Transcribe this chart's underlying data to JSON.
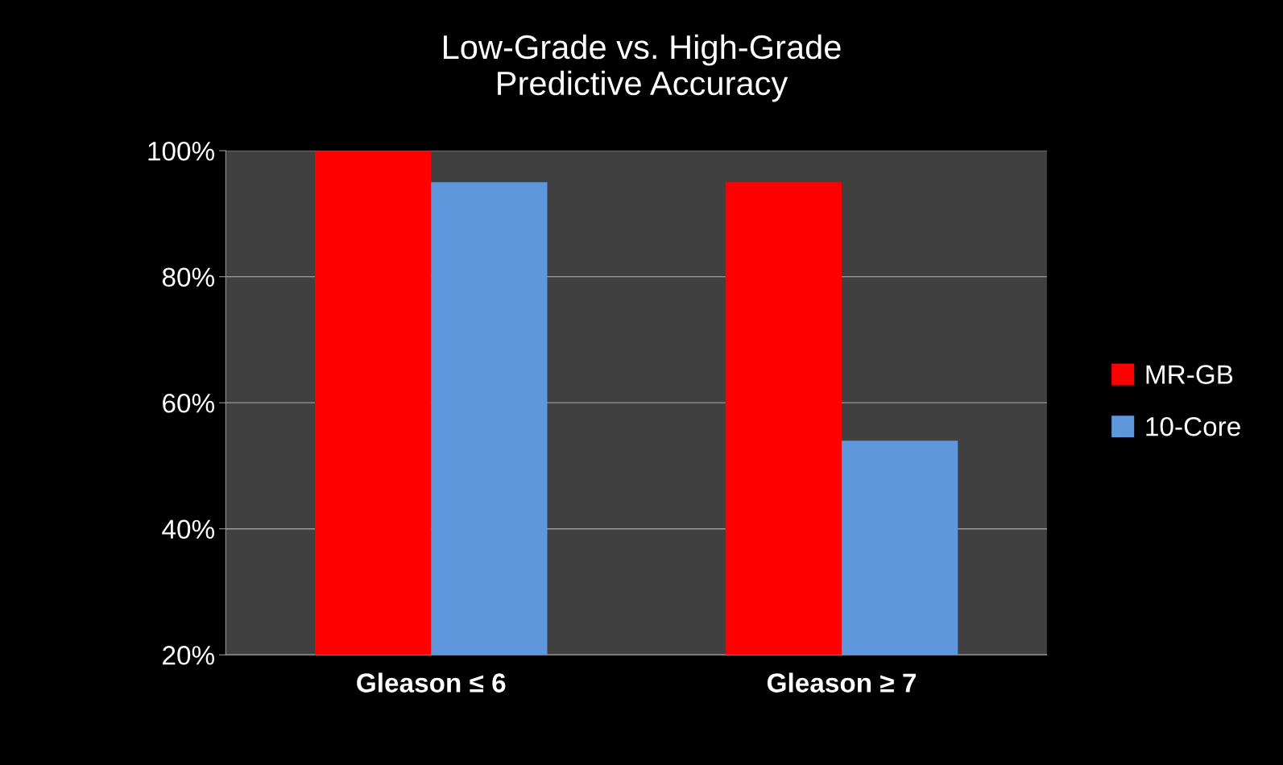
{
  "chart_data": {
    "type": "bar",
    "title": "Low-Grade vs. High-Grade\nPredictive Accuracy",
    "categories": [
      "Gleason ≤ 6",
      "Gleason ≥ 7"
    ],
    "series": [
      {
        "name": "MR-GB",
        "color": "#ff0000",
        "values": [
          100,
          95
        ]
      },
      {
        "name": "10-Core",
        "color": "#5f97dd",
        "values": [
          95,
          54
        ]
      }
    ],
    "ylim": [
      20,
      100
    ],
    "yticks": [
      {
        "value": 20,
        "label": "20%"
      },
      {
        "value": 40,
        "label": "40%"
      },
      {
        "value": 60,
        "label": "60%"
      },
      {
        "value": 80,
        "label": "80%"
      },
      {
        "value": 100,
        "label": "100%"
      }
    ],
    "grid": "y",
    "legend": "right"
  }
}
